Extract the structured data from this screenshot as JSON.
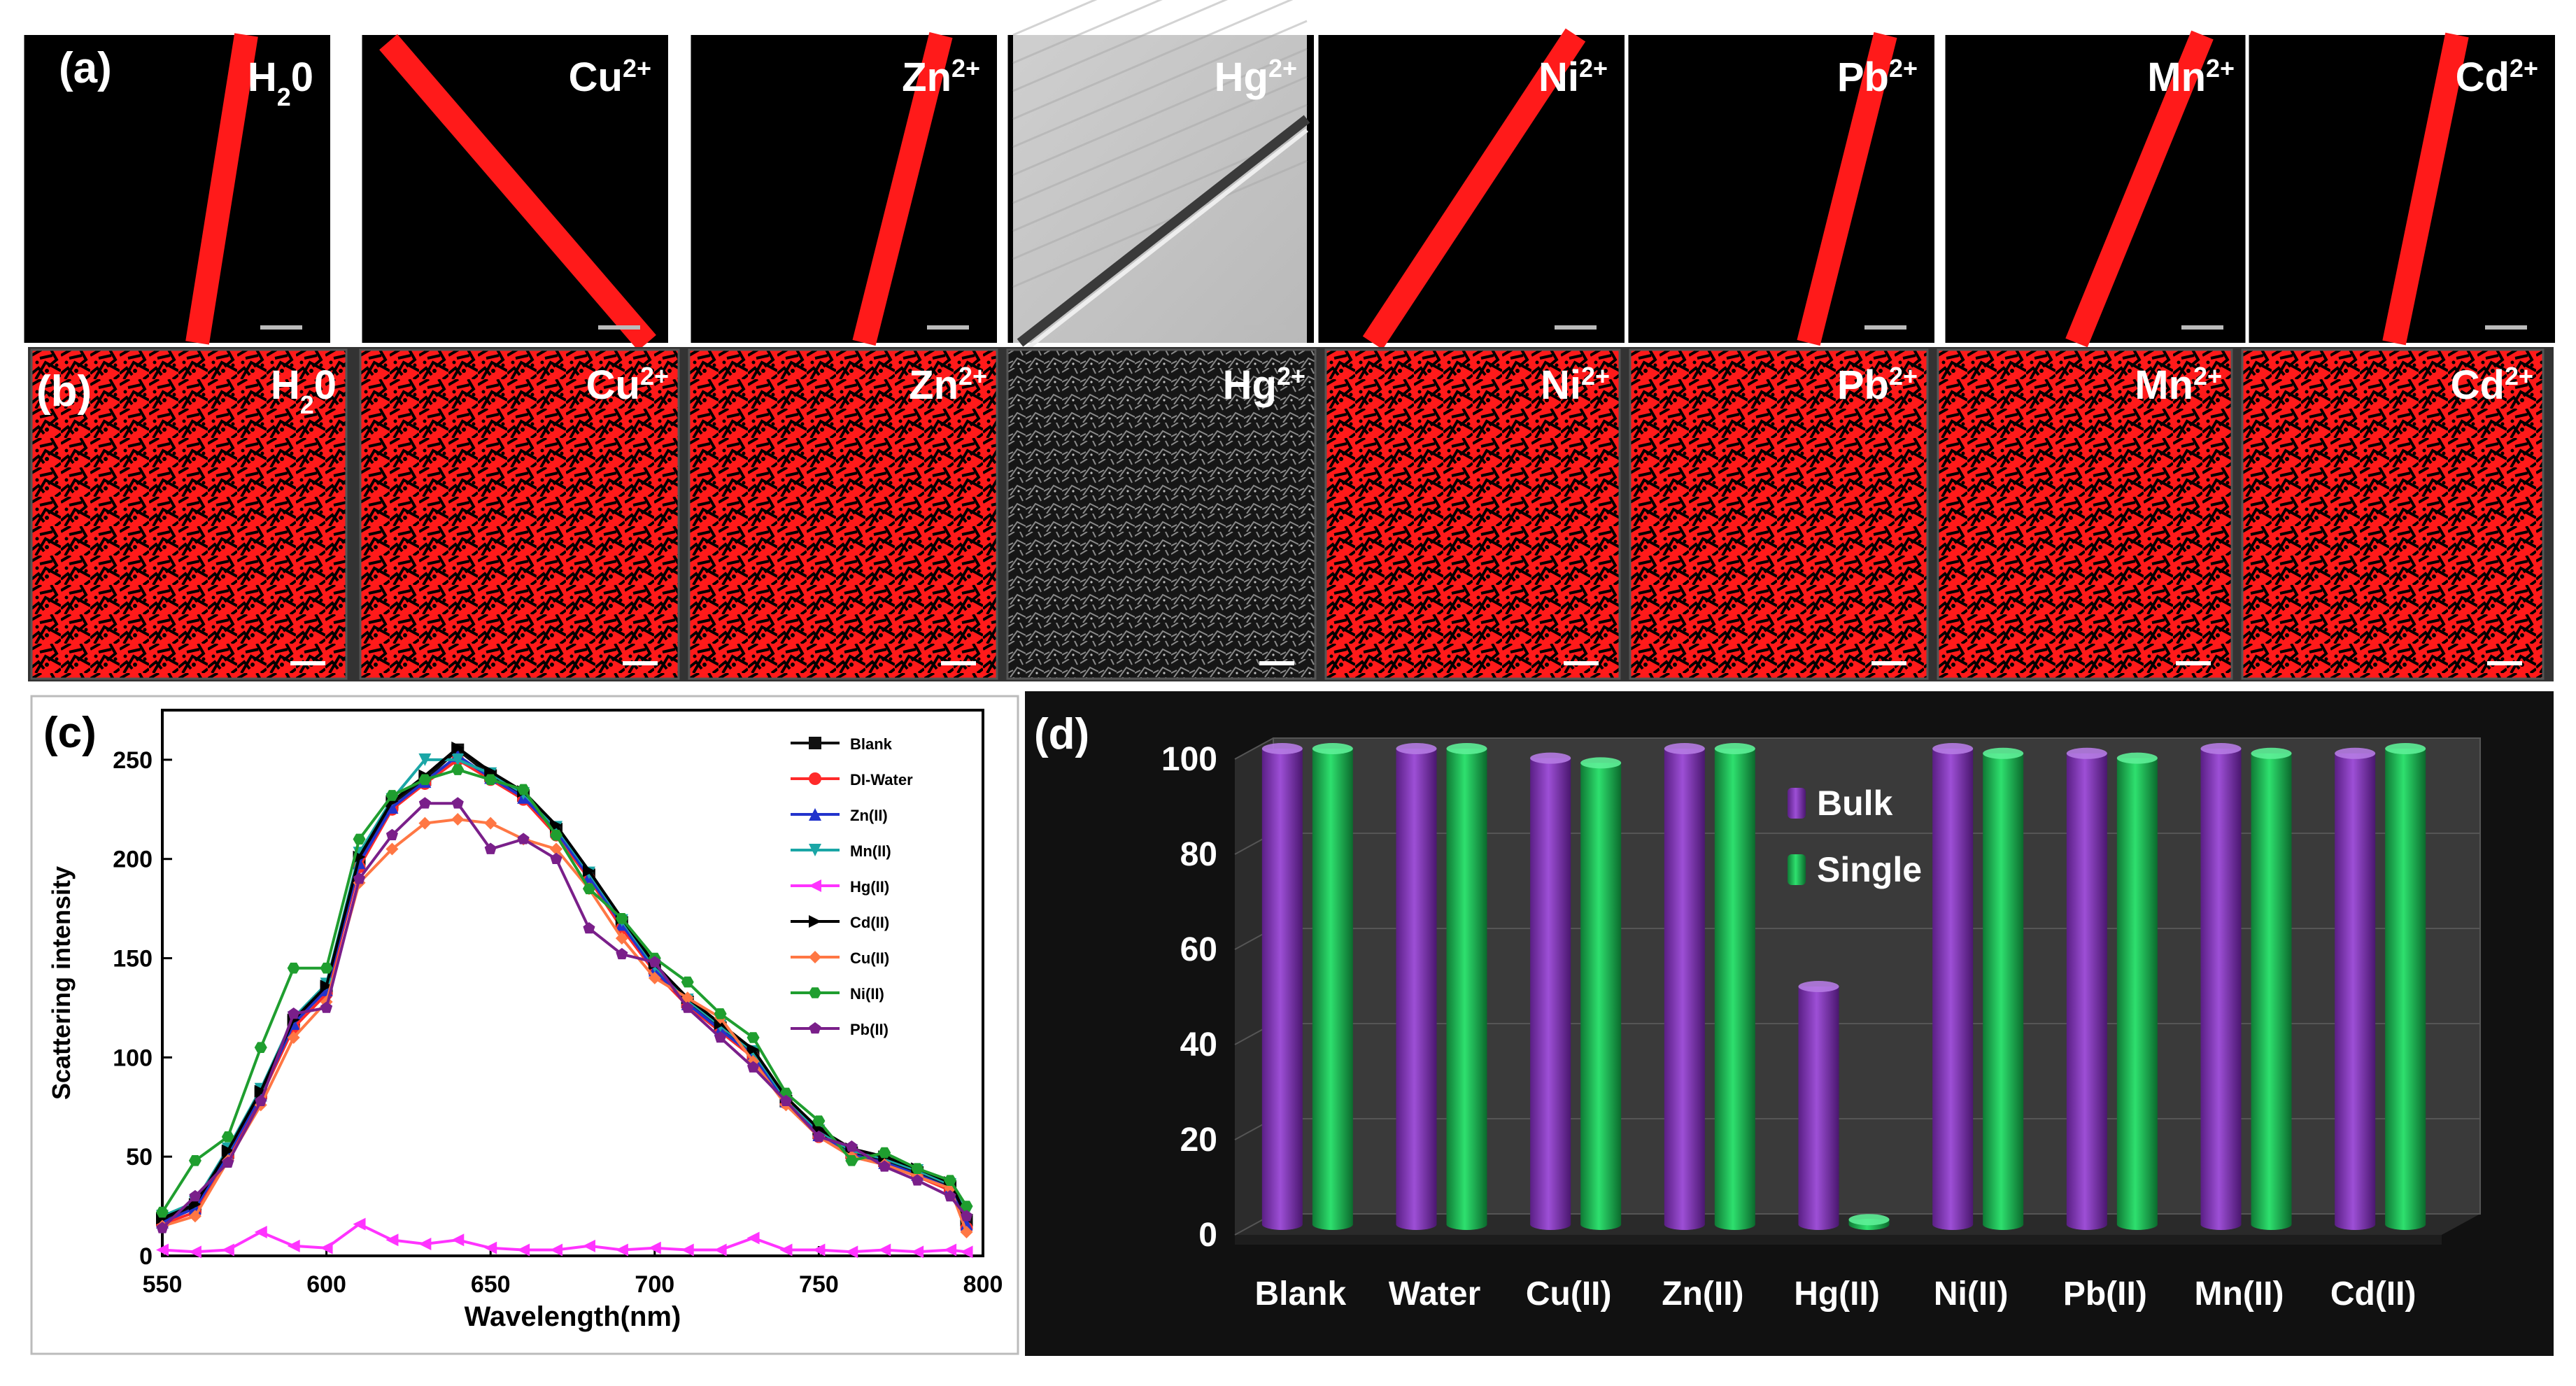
{
  "panel_labels": {
    "a": "(a)",
    "b": "(b)",
    "c": "(c)",
    "d": "(d)"
  },
  "colors": {
    "fluor_red": "#ff1a1a",
    "bulk_purple": "#8a35c2",
    "single_green": "#1ec25a",
    "panel_d_bg": "#111111"
  },
  "row_a": [
    {
      "ion": "H",
      "sub": "2",
      "tail": "0",
      "sup": "",
      "kind": "fiber",
      "bright": true
    },
    {
      "ion": "Cu",
      "sub": "",
      "tail": "",
      "sup": "2+",
      "kind": "fiber",
      "bright": true
    },
    {
      "ion": "Zn",
      "sub": "",
      "tail": "",
      "sup": "2+",
      "kind": "fiber",
      "bright": true
    },
    {
      "ion": "Hg",
      "sub": "",
      "tail": "",
      "sup": "2+",
      "kind": "fiber",
      "bright": false
    },
    {
      "ion": "Ni",
      "sub": "",
      "tail": "",
      "sup": "2+",
      "kind": "fiber",
      "bright": true
    },
    {
      "ion": "Pb",
      "sub": "",
      "tail": "",
      "sup": "2+",
      "kind": "fiber",
      "bright": true
    },
    {
      "ion": "Mn",
      "sub": "",
      "tail": "",
      "sup": "2+",
      "kind": "fiber",
      "bright": true
    },
    {
      "ion": "Cd",
      "sub": "",
      "tail": "",
      "sup": "2+",
      "kind": "fiber",
      "bright": true
    }
  ],
  "row_b": [
    {
      "ion": "H",
      "sub": "2",
      "tail": "0",
      "sup": "",
      "kind": "mesh",
      "bright": true
    },
    {
      "ion": "Cu",
      "sub": "",
      "tail": "",
      "sup": "2+",
      "kind": "mesh",
      "bright": true
    },
    {
      "ion": "Zn",
      "sub": "",
      "tail": "",
      "sup": "2+",
      "kind": "mesh",
      "bright": true
    },
    {
      "ion": "Hg",
      "sub": "",
      "tail": "",
      "sup": "2+",
      "kind": "mesh",
      "bright": false
    },
    {
      "ion": "Ni",
      "sub": "",
      "tail": "",
      "sup": "2+",
      "kind": "mesh",
      "bright": true
    },
    {
      "ion": "Pb",
      "sub": "",
      "tail": "",
      "sup": "2+",
      "kind": "mesh",
      "bright": true
    },
    {
      "ion": "Mn",
      "sub": "",
      "tail": "",
      "sup": "2+",
      "kind": "mesh",
      "bright": true
    },
    {
      "ion": "Cd",
      "sub": "",
      "tail": "",
      "sup": "2+",
      "kind": "mesh",
      "bright": true
    }
  ],
  "chart_data": [
    {
      "type": "line",
      "panel": "c",
      "title": "",
      "xlabel": "Wavelength(nm)",
      "ylabel": "Scattering intensity",
      "xlim": [
        550,
        800
      ],
      "ylim": [
        0,
        275
      ],
      "xticks": [
        550,
        600,
        650,
        700,
        750,
        800
      ],
      "yticks": [
        0,
        50,
        100,
        150,
        200,
        250
      ],
      "x": [
        550,
        560,
        570,
        580,
        590,
        600,
        610,
        620,
        630,
        640,
        650,
        660,
        670,
        680,
        690,
        700,
        710,
        720,
        730,
        740,
        750,
        760,
        770,
        780,
        790,
        795
      ],
      "series": [
        {
          "name": "Blank",
          "color": "#111111",
          "marker": "square",
          "values": [
            18,
            25,
            52,
            82,
            118,
            135,
            200,
            228,
            240,
            255,
            242,
            232,
            215,
            192,
            168,
            145,
            128,
            115,
            102,
            78,
            62,
            52,
            48,
            42,
            35,
            18
          ]
        },
        {
          "name": "DI-Water",
          "color": "#ff2a2a",
          "marker": "circle",
          "values": [
            16,
            22,
            50,
            80,
            115,
            132,
            196,
            225,
            238,
            250,
            240,
            230,
            212,
            190,
            165,
            143,
            126,
            113,
            100,
            77,
            60,
            50,
            46,
            40,
            33,
            14
          ]
        },
        {
          "name": "Zn(II)",
          "color": "#2233cc",
          "marker": "triangle-up",
          "values": [
            17,
            24,
            51,
            81,
            117,
            134,
            198,
            226,
            239,
            252,
            241,
            231,
            214,
            191,
            167,
            144,
            127,
            114,
            101,
            78,
            61,
            51,
            47,
            41,
            34,
            16
          ]
        },
        {
          "name": "Mn(II)",
          "color": "#1aa6a6",
          "marker": "triangle-down",
          "values": [
            20,
            27,
            54,
            84,
            120,
            137,
            203,
            230,
            250,
            250,
            243,
            233,
            216,
            193,
            169,
            146,
            129,
            116,
            103,
            79,
            63,
            53,
            49,
            43,
            36,
            22
          ]
        },
        {
          "name": "Hg(II)",
          "color": "#ff33ff",
          "marker": "triangle-left",
          "values": [
            3,
            2,
            3,
            12,
            5,
            4,
            16,
            8,
            6,
            8,
            4,
            3,
            3,
            5,
            3,
            4,
            3,
            3,
            9,
            3,
            3,
            2,
            3,
            2,
            3,
            2
          ]
        },
        {
          "name": "Cd(II)",
          "color": "#000000",
          "marker": "triangle-right",
          "values": [
            19,
            26,
            53,
            83,
            119,
            136,
            201,
            229,
            242,
            256,
            244,
            234,
            217,
            194,
            170,
            147,
            130,
            117,
            104,
            80,
            64,
            54,
            50,
            44,
            37,
            20
          ]
        },
        {
          "name": "Cu(II)",
          "color": "#ff7744",
          "marker": "diamond",
          "values": [
            15,
            20,
            48,
            76,
            110,
            128,
            188,
            205,
            218,
            220,
            218,
            210,
            205,
            185,
            160,
            140,
            130,
            120,
            98,
            76,
            60,
            50,
            46,
            40,
            34,
            12
          ]
        },
        {
          "name": "Ni(II)",
          "color": "#1f9e2f",
          "marker": "hexagon",
          "values": [
            22,
            48,
            60,
            105,
            145,
            145,
            210,
            232,
            240,
            245,
            240,
            235,
            212,
            185,
            170,
            150,
            138,
            122,
            110,
            82,
            68,
            48,
            52,
            44,
            38,
            25
          ]
        },
        {
          "name": "Pb(II)",
          "color": "#7a1f8a",
          "marker": "pentagon",
          "values": [
            14,
            30,
            47,
            78,
            122,
            125,
            190,
            212,
            228,
            228,
            205,
            210,
            200,
            165,
            152,
            148,
            125,
            110,
            95,
            78,
            60,
            55,
            45,
            38,
            30,
            20
          ]
        }
      ]
    },
    {
      "type": "bar",
      "panel": "d",
      "title": "",
      "xlabel": "",
      "ylabel": "",
      "ylim": [
        0,
        100
      ],
      "yticks": [
        0,
        20,
        40,
        60,
        80,
        100
      ],
      "categories": [
        "Blank",
        "Water",
        "Cu(II)",
        "Zn(II)",
        "Hg(II)",
        "Ni(II)",
        "Pb(II)",
        "Mn(II)",
        "Cd(II)"
      ],
      "series": [
        {
          "name": "Bulk",
          "color": "#8a35c2",
          "values": [
            100,
            100,
            98,
            100,
            50,
            100,
            99,
            100,
            99
          ]
        },
        {
          "name": "Single",
          "color": "#1ec25a",
          "values": [
            100,
            100,
            97,
            100,
            1,
            99,
            98,
            99,
            100
          ]
        }
      ],
      "legend": "top-center"
    }
  ]
}
